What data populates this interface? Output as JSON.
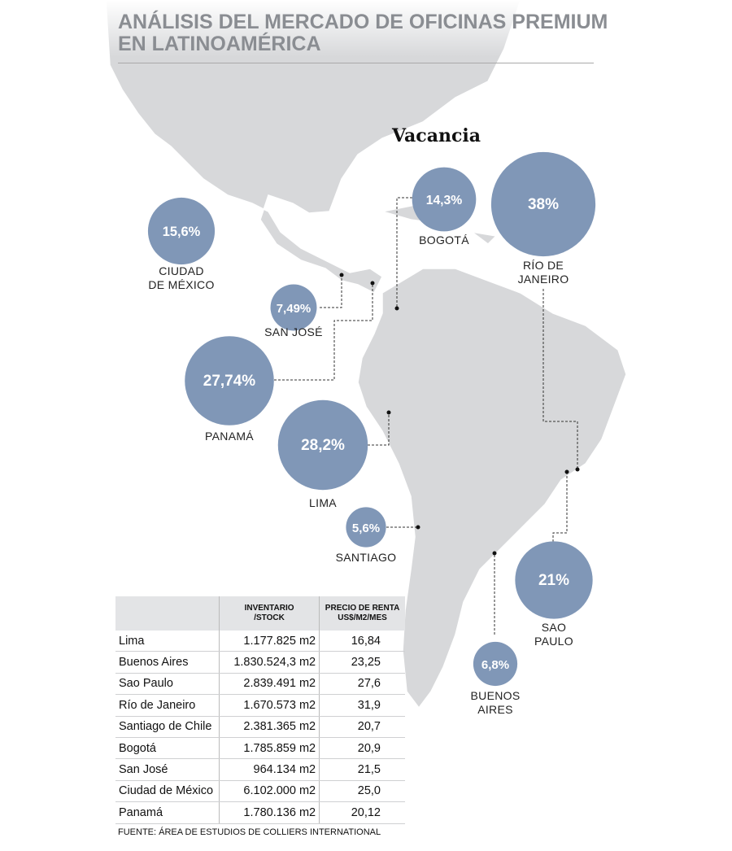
{
  "header": {
    "title": [
      "ANÁLISIS DEL MERCADO DE OFICINAS PREMIUM",
      "EN LATINOAMÉRICA"
    ],
    "subtitle": "Vacancia"
  },
  "bubbles": [
    {
      "label": [
        "CIUDAD",
        "DE MÉXICO"
      ],
      "value": 15.6,
      "value_label": "15,6%"
    },
    {
      "label": [
        "BOGOTÁ"
      ],
      "value": 14.3,
      "value_label": "14,3%"
    },
    {
      "label": [
        "RÍO DE",
        "JANEIRO"
      ],
      "value": 38,
      "value_label": "38%"
    },
    {
      "label": [
        "SAN JOSÉ"
      ],
      "value": 7.49,
      "value_label": "7,49%"
    },
    {
      "label": [
        "PANAMÁ"
      ],
      "value": 27.74,
      "value_label": "27,74%"
    },
    {
      "label": [
        "LIMA"
      ],
      "value": 28.2,
      "value_label": "28,2%"
    },
    {
      "label": [
        "SANTIAGO"
      ],
      "value": 5.6,
      "value_label": "5,6%"
    },
    {
      "label": [
        "SAO",
        "PAULO"
      ],
      "value": 21,
      "value_label": "21%"
    },
    {
      "label": [
        "BUENOS",
        "AIRES"
      ],
      "value": 6.8,
      "value_label": "6,8%"
    }
  ],
  "table": {
    "columns": [
      [
        "INVENTARIO",
        "/STOCK"
      ],
      [
        "PRECIO DE RENTA",
        "US$/M2/MES"
      ]
    ],
    "rows": [
      [
        "Lima",
        "1.177.825 m2",
        "16,84"
      ],
      [
        "Buenos Aires",
        "1.830.524,3 m2",
        "23,25"
      ],
      [
        "Sao Paulo",
        "2.839.491 m2",
        "27,6"
      ],
      [
        "Río de Janeiro",
        "1.670.573 m2",
        "31,9"
      ],
      [
        "Santiago de Chile",
        "2.381.365 m2",
        "20,7"
      ],
      [
        "Bogotá",
        "1.785.859 m2",
        "20,9"
      ],
      [
        "San José",
        "964.134 m2",
        "21,5"
      ],
      [
        "Ciudad de México",
        "6.102.000 m2",
        "25,0"
      ],
      [
        "Panamá",
        "1.780.136 m2",
        "20,12"
      ]
    ]
  },
  "source": "FUENTE: ÁREA DE ESTUDIOS DE COLLIERS INTERNATIONAL"
}
